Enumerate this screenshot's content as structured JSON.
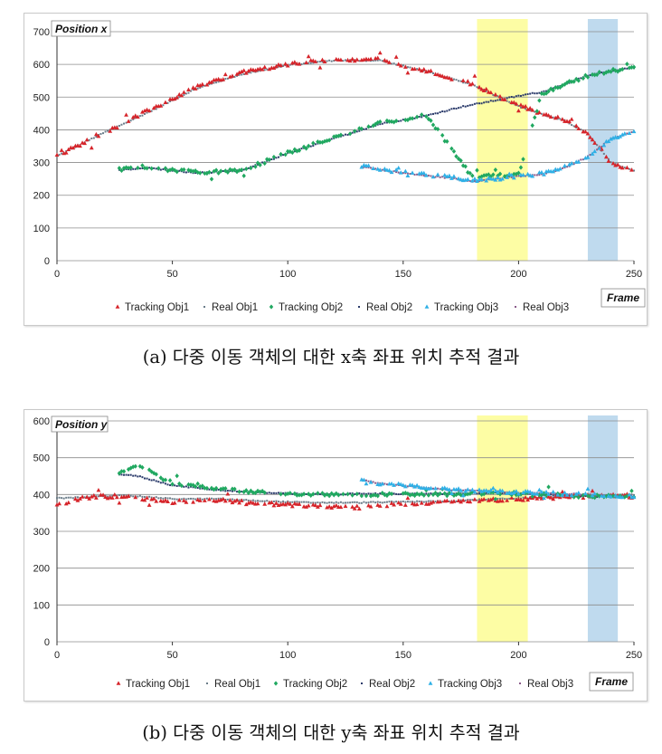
{
  "captions": {
    "a": "(a) 다중 이동 객체의 대한 x축 좌표 위치 추적 결과",
    "b": "(b) 다중 이동 객체의 대한 y축 좌표 위치 추적 결과"
  },
  "colors": {
    "tracking_obj1": "#d6242a",
    "real_obj1": "#6b7d8a",
    "tracking_obj2": "#20a860",
    "real_obj2": "#2a3a6a",
    "tracking_obj3": "#2fb0e6",
    "real_obj3": "#8a5a8a",
    "highlight_yellow": "#fdfd9a",
    "highlight_blue": "#b8d6ec",
    "gridline": "#8c8c8c"
  },
  "legend": [
    "Tracking Obj1",
    "Real Obj1",
    "Tracking Obj2",
    "Real Obj2",
    "Tracking Obj3",
    "Real Obj3"
  ],
  "chart_data": [
    {
      "type": "scatter",
      "title": "Position x",
      "xlabel": "Frame",
      "ylabel": "Position x",
      "xlim": [
        0,
        250
      ],
      "ylim": [
        0,
        700
      ],
      "xticks": [
        "0",
        "50",
        "100",
        "150",
        "200",
        "250"
      ],
      "yticks": [
        "0",
        "100",
        "200",
        "300",
        "400",
        "500",
        "600",
        "700"
      ],
      "grid": "horizontal",
      "legend_position": "bottom",
      "highlight_bands": [
        {
          "x": [
            182,
            204
          ],
          "color": "yellow"
        },
        {
          "x": [
            230,
            243
          ],
          "color": "blue"
        }
      ],
      "series": [
        {
          "name": "Tracking Obj1",
          "marker": "triangle",
          "x": [
            0,
            20,
            40,
            60,
            80,
            100,
            120,
            140,
            160,
            180,
            200,
            210,
            220,
            230,
            240,
            250
          ],
          "y": [
            320,
            390,
            460,
            530,
            575,
            600,
            615,
            615,
            580,
            540,
            475,
            450,
            430,
            390,
            300,
            275
          ]
        },
        {
          "name": "Real Obj1",
          "marker": "dot",
          "x": [
            0,
            20,
            40,
            60,
            80,
            100,
            120,
            140,
            160,
            180,
            200,
            210,
            220,
            230,
            240,
            250
          ],
          "y": [
            320,
            390,
            455,
            525,
            570,
            598,
            612,
            612,
            578,
            538,
            472,
            448,
            428,
            388,
            300,
            275
          ]
        },
        {
          "name": "Tracking Obj2",
          "marker": "diamond",
          "x": [
            27,
            40,
            60,
            80,
            100,
            120,
            140,
            160,
            180,
            200,
            210,
            220,
            230,
            240,
            250
          ],
          "y": [
            280,
            285,
            270,
            275,
            330,
            375,
            420,
            445,
            255,
            265,
            510,
            540,
            565,
            580,
            590
          ]
        },
        {
          "name": "Real Obj2",
          "marker": "dot",
          "x": [
            27,
            40,
            60,
            80,
            100,
            120,
            140,
            160,
            175,
            205,
            210,
            220,
            230,
            240,
            250
          ],
          "y": [
            278,
            283,
            268,
            275,
            328,
            373,
            418,
            443,
            470,
            510,
            515,
            540,
            565,
            580,
            590
          ]
        },
        {
          "name": "Tracking Obj3",
          "marker": "triangle",
          "x": [
            132,
            140,
            150,
            160,
            170,
            180,
            190,
            200,
            210,
            220,
            230,
            240,
            250
          ],
          "y": [
            290,
            280,
            270,
            262,
            255,
            245,
            250,
            260,
            265,
            285,
            320,
            370,
            395
          ]
        },
        {
          "name": "Real Obj3",
          "marker": "dot",
          "x": [
            132,
            140,
            150,
            160,
            170,
            180,
            190,
            200,
            210,
            220,
            230,
            240,
            250
          ],
          "y": [
            288,
            278,
            268,
            260,
            253,
            243,
            250,
            258,
            263,
            283,
            318,
            372,
            395
          ]
        }
      ]
    },
    {
      "type": "scatter",
      "title": "Position y",
      "xlabel": "Frame",
      "ylabel": "Position y",
      "xlim": [
        0,
        250
      ],
      "ylim": [
        0,
        600
      ],
      "xticks": [
        "0",
        "50",
        "100",
        "150",
        "200",
        "250"
      ],
      "yticks": [
        "0",
        "100",
        "200",
        "300",
        "400",
        "500",
        "600"
      ],
      "grid": "horizontal",
      "legend_position": "bottom",
      "highlight_bands": [
        {
          "x": [
            182,
            204
          ],
          "color": "yellow"
        },
        {
          "x": [
            230,
            243
          ],
          "color": "blue"
        }
      ],
      "series": [
        {
          "name": "Tracking Obj1",
          "marker": "triangle",
          "x": [
            0,
            10,
            20,
            30,
            50,
            70,
            90,
            110,
            130,
            150,
            170,
            190,
            210,
            230,
            250
          ],
          "y": [
            370,
            390,
            395,
            395,
            380,
            385,
            375,
            370,
            365,
            375,
            380,
            385,
            390,
            395,
            400
          ]
        },
        {
          "name": "Real Obj1",
          "marker": "dot",
          "x": [
            0,
            10,
            20,
            30,
            50,
            70,
            90,
            110,
            130,
            150,
            170,
            190,
            210,
            230,
            250
          ],
          "y": [
            390,
            392,
            395,
            398,
            388,
            388,
            382,
            378,
            378,
            380,
            382,
            388,
            392,
            395,
            400
          ]
        },
        {
          "name": "Tracking Obj2",
          "marker": "diamond",
          "x": [
            27,
            35,
            50,
            70,
            90,
            110,
            130,
            150,
            170,
            190,
            210,
            230,
            250
          ],
          "y": [
            460,
            480,
            430,
            415,
            405,
            400,
            400,
            400,
            400,
            405,
            400,
            395,
            395
          ]
        },
        {
          "name": "Real Obj2",
          "marker": "dot",
          "x": [
            27,
            35,
            50,
            70,
            90,
            110,
            130,
            150,
            170,
            190,
            210,
            230,
            250
          ],
          "y": [
            455,
            450,
            425,
            412,
            405,
            400,
            402,
            402,
            402,
            405,
            400,
            395,
            395
          ]
        },
        {
          "name": "Tracking Obj3",
          "marker": "triangle",
          "x": [
            132,
            140,
            150,
            160,
            170,
            180,
            190,
            200,
            210,
            220,
            230,
            240,
            250
          ],
          "y": [
            440,
            430,
            425,
            418,
            413,
            410,
            408,
            405,
            405,
            402,
            400,
            398,
            395
          ]
        },
        {
          "name": "Real Obj3",
          "marker": "dot",
          "x": [
            132,
            140,
            150,
            160,
            170,
            180,
            190,
            200,
            210,
            220,
            230,
            240,
            250
          ],
          "y": [
            440,
            430,
            424,
            418,
            413,
            410,
            408,
            405,
            404,
            402,
            400,
            398,
            395
          ]
        }
      ]
    }
  ]
}
